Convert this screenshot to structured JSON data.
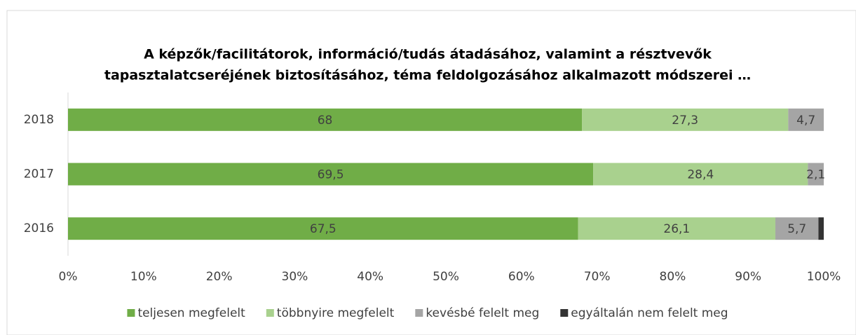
{
  "chart_data": {
    "type": "stacked_barh",
    "title": [
      "A képzők/facilitátorok, információ/tudás átadásához, valamint a résztvevők",
      "tapasztalatcseréjének biztosításához, téma feldolgozásához alkalmazott módszerei …"
    ],
    "categories": [
      "2018",
      "2017",
      "2016"
    ],
    "series": [
      {
        "name": "teljesen megfelelt",
        "color": "#70ad47",
        "values": [
          68,
          69.5,
          67.5
        ],
        "value_labels": [
          "68",
          "69,5",
          "67,5"
        ]
      },
      {
        "name": "többnyire megfelelt",
        "color": "#a9d18e",
        "values": [
          27.3,
          28.4,
          26.1
        ],
        "value_labels": [
          "27,3",
          "28,4",
          "26,1"
        ]
      },
      {
        "name": "kevésbé felelt meg",
        "color": "#a5a5a5",
        "values": [
          4.7,
          2.1,
          5.7
        ],
        "value_labels": [
          "4,7",
          "2,1",
          "5,7"
        ]
      },
      {
        "name": "egyáltalán nem felelt meg",
        "color": "#333333",
        "values": [
          0,
          0,
          0.7
        ]
      }
    ],
    "xlim": [
      0,
      100
    ],
    "xticks": [
      {
        "value": 0,
        "label": "0%"
      },
      {
        "value": 10,
        "label": "10%"
      },
      {
        "value": 20,
        "label": "20%"
      },
      {
        "value": 30,
        "label": "30%"
      },
      {
        "value": 40,
        "label": "40%"
      },
      {
        "value": 50,
        "label": "50%"
      },
      {
        "value": 60,
        "label": "60%"
      },
      {
        "value": 70,
        "label": "70%"
      },
      {
        "value": 80,
        "label": "80%"
      },
      {
        "value": 90,
        "label": "90%"
      },
      {
        "value": 100,
        "label": "100%"
      }
    ],
    "legend": "bottom"
  }
}
